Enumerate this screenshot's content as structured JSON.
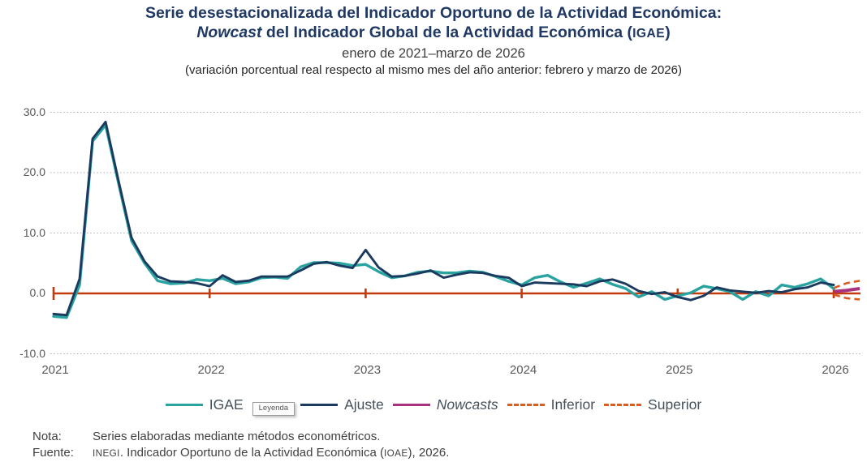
{
  "header": {
    "title_line1": "Serie desestacionalizada del Indicador Oportuno de la Actividad Económica:",
    "title_line2": {
      "italic": "Nowcast",
      "rest": " del Indicador Global de la Actividad Económica (",
      "acronym": "IGAE",
      "close": ")"
    },
    "subtitle": "enero de 2021–marzo de 2026",
    "description": "(variación porcentual real respecto al mismo mes del año anterior: febrero y marzo de 2026)"
  },
  "chart_data": {
    "type": "line",
    "title": "Serie desestacionalizada del Indicador Oportuno de la Actividad Económica: Nowcast del Indicador Global de la Actividad Económica (IGAE)",
    "subtitle": "enero de 2021–marzo de 2026",
    "annotation": "(variación porcentual real respecto al mismo mes del año anterior: febrero y marzo de 2026)",
    "x_frequency": "monthly",
    "x_start": "enero 2021",
    "x_end": "marzo 2026",
    "grid": "dotted horizontal gridlines",
    "legend_position": "bottom",
    "ylim": [
      -10,
      30
    ],
    "zero_line_color": "#C23B0E",
    "yticks": [
      {
        "label": "30.0",
        "value": 30
      },
      {
        "label": "20.0",
        "value": 20
      },
      {
        "label": "10.0",
        "value": 10
      },
      {
        "label": "0.0",
        "value": 0
      },
      {
        "label": "-10.0",
        "value": -10
      }
    ],
    "xticks": [
      {
        "label": "2021",
        "month_index": 0
      },
      {
        "label": "2022",
        "month_index": 12
      },
      {
        "label": "2023",
        "month_index": 24
      },
      {
        "label": "2024",
        "month_index": 36
      },
      {
        "label": "2025",
        "month_index": 48
      },
      {
        "label": "2026",
        "month_index": 60
      }
    ],
    "series": [
      {
        "name": "IGAE",
        "color": "#29A3A0",
        "style": "solid",
        "values": [
          -3.8,
          -4.0,
          1.4,
          25.2,
          27.9,
          18.2,
          8.7,
          5.0,
          2.1,
          1.6,
          1.7,
          2.3,
          2.1,
          2.5,
          1.6,
          1.9,
          2.6,
          2.7,
          2.5,
          4.4,
          5.1,
          5.1,
          5.0,
          4.6,
          4.8,
          3.6,
          2.6,
          2.9,
          3.5,
          3.7,
          3.4,
          3.4,
          3.7,
          3.5,
          2.8,
          2.0,
          1.4,
          2.6,
          3.0,
          1.9,
          1.0,
          1.7,
          2.4,
          1.5,
          0.8,
          -0.6,
          0.3,
          -1.0,
          -0.4,
          0.1,
          1.2,
          0.8,
          0.3,
          -1.0,
          0.3,
          -0.4,
          1.4,
          1.0,
          1.6,
          2.4,
          0.8
        ]
      },
      {
        "name": "Ajuste",
        "color": "#1B3A5F",
        "style": "solid",
        "values": [
          -3.4,
          -3.6,
          2.4,
          25.6,
          28.4,
          18.6,
          9.2,
          5.3,
          2.8,
          2.0,
          1.9,
          1.7,
          1.2,
          3.0,
          1.9,
          2.1,
          2.8,
          2.8,
          2.8,
          3.8,
          4.9,
          5.2,
          4.6,
          4.2,
          7.2,
          4.3,
          2.8,
          2.9,
          3.3,
          3.8,
          2.6,
          3.1,
          3.5,
          3.4,
          2.9,
          2.6,
          1.2,
          1.8,
          1.7,
          1.6,
          1.5,
          1.2,
          2.0,
          2.3,
          1.6,
          0.4,
          -0.1,
          0.2,
          -0.6,
          -1.1,
          -0.4,
          1.0,
          0.5,
          0.3,
          0.1,
          0.4,
          0.2,
          0.7,
          1.0,
          1.8,
          1.4
        ]
      }
    ],
    "forecast_series": [
      {
        "name": "Nowcasts",
        "color": "#A8327E",
        "style": "solid",
        "month_index": [
          60,
          61,
          62
        ],
        "months": [
          "enero 2026",
          "febrero 2026",
          "marzo 2026"
        ],
        "values": [
          0.3,
          0.5,
          0.8
        ]
      },
      {
        "name": "Inferior",
        "color": "#D95D1E",
        "style": "dashed",
        "month_index": [
          60,
          61,
          62
        ],
        "months": [
          "enero 2026",
          "febrero 2026",
          "marzo 2026"
        ],
        "values": [
          -0.2,
          -0.8,
          -1.0
        ]
      },
      {
        "name": "Superior",
        "color": "#D95D1E",
        "style": "dashed",
        "month_index": [
          60,
          61,
          62
        ],
        "months": [
          "enero 2026",
          "febrero 2026",
          "marzo 2026"
        ],
        "values": [
          0.9,
          1.7,
          2.1
        ]
      }
    ]
  },
  "legend": {
    "tooltip": "Leyenda",
    "items": [
      {
        "label": "IGAE",
        "color": "#29A3A0",
        "style": "solid",
        "italic": false
      },
      {
        "label": "Ajuste",
        "color": "#1B3A5F",
        "style": "solid",
        "italic": false
      },
      {
        "label": "Nowcasts",
        "color": "#A8327E",
        "style": "solid",
        "italic": true
      },
      {
        "label": "Inferior",
        "color": "#D95D1E",
        "style": "dashed",
        "italic": false
      },
      {
        "label": "Superior",
        "color": "#D95D1E",
        "style": "dashed",
        "italic": false
      }
    ]
  },
  "notes": {
    "nota_label": "Nota:",
    "nota_text": "Series elaboradas mediante métodos econométricos.",
    "fuente_label": "Fuente:",
    "fuente_parts": {
      "p0": "INEGI",
      "p1": ". Indicador Oportuno de la Actividad Económica (",
      "p2": "IOAE",
      "p3": "), 2026."
    }
  }
}
